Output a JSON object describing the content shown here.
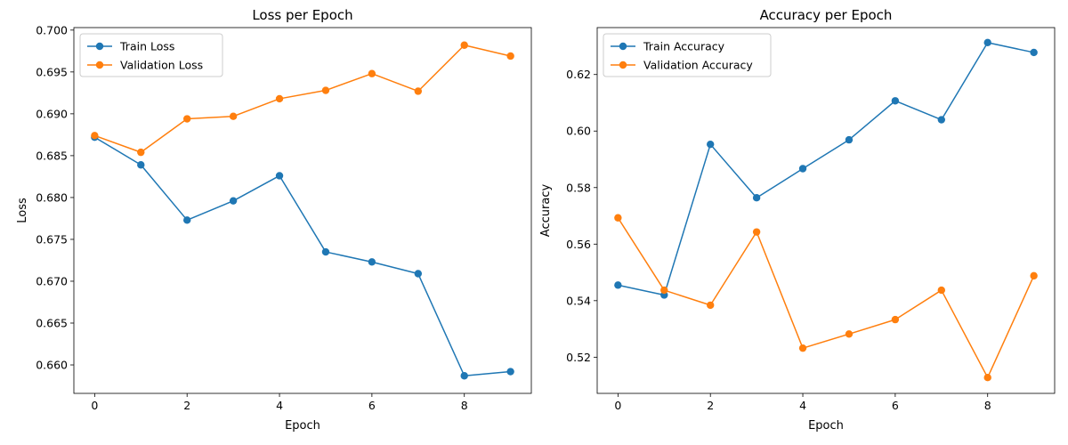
{
  "chart_data": [
    {
      "type": "line",
      "title": "Loss per Epoch",
      "xlabel": "Epoch",
      "ylabel": "Loss",
      "x": [
        0,
        1,
        2,
        3,
        4,
        5,
        6,
        7,
        8,
        9
      ],
      "xlim": [
        -0.45,
        9.45
      ],
      "ylim": [
        0.6566,
        0.7003
      ],
      "xticks": [
        0,
        2,
        4,
        6,
        8
      ],
      "yticks": [
        0.66,
        0.665,
        0.67,
        0.675,
        0.68,
        0.685,
        0.69,
        0.695,
        0.7
      ],
      "ytick_labels": [
        "0.660",
        "0.665",
        "0.670",
        "0.675",
        "0.680",
        "0.685",
        "0.690",
        "0.695",
        "0.700"
      ],
      "legend_position": "upper-left",
      "grid": false,
      "series": [
        {
          "name": "Train Loss",
          "color": "#1f77b4",
          "values": [
            0.6872,
            0.6839,
            0.6773,
            0.6796,
            0.6826,
            0.6735,
            0.6723,
            0.6709,
            0.6587,
            0.6592
          ]
        },
        {
          "name": "Validation Loss",
          "color": "#ff7f0e",
          "values": [
            0.6874,
            0.6854,
            0.6894,
            0.6897,
            0.6918,
            0.6928,
            0.6948,
            0.6927,
            0.6982,
            0.6969
          ]
        }
      ]
    },
    {
      "type": "line",
      "title": "Accuracy per Epoch",
      "xlabel": "Epoch",
      "ylabel": "Accuracy",
      "x": [
        0,
        1,
        2,
        3,
        4,
        5,
        6,
        7,
        8,
        9
      ],
      "xlim": [
        -0.45,
        9.45
      ],
      "ylim": [
        0.5072,
        0.6366
      ],
      "xticks": [
        0,
        2,
        4,
        6,
        8
      ],
      "yticks": [
        0.52,
        0.54,
        0.56,
        0.58,
        0.6,
        0.62
      ],
      "ytick_labels": [
        "0.52",
        "0.54",
        "0.56",
        "0.58",
        "0.60",
        "0.62"
      ],
      "legend_position": "upper-left",
      "grid": false,
      "series": [
        {
          "name": "Train Accuracy",
          "color": "#1f77b4",
          "values": [
            0.5455,
            0.542,
            0.5953,
            0.5764,
            0.5867,
            0.5969,
            0.6107,
            0.604,
            0.6313,
            0.6278
          ]
        },
        {
          "name": "Validation Accuracy",
          "color": "#ff7f0e",
          "values": [
            0.5693,
            0.5437,
            0.5384,
            0.5643,
            0.5232,
            0.5282,
            0.5333,
            0.5437,
            0.5128,
            0.5488
          ]
        }
      ]
    }
  ]
}
